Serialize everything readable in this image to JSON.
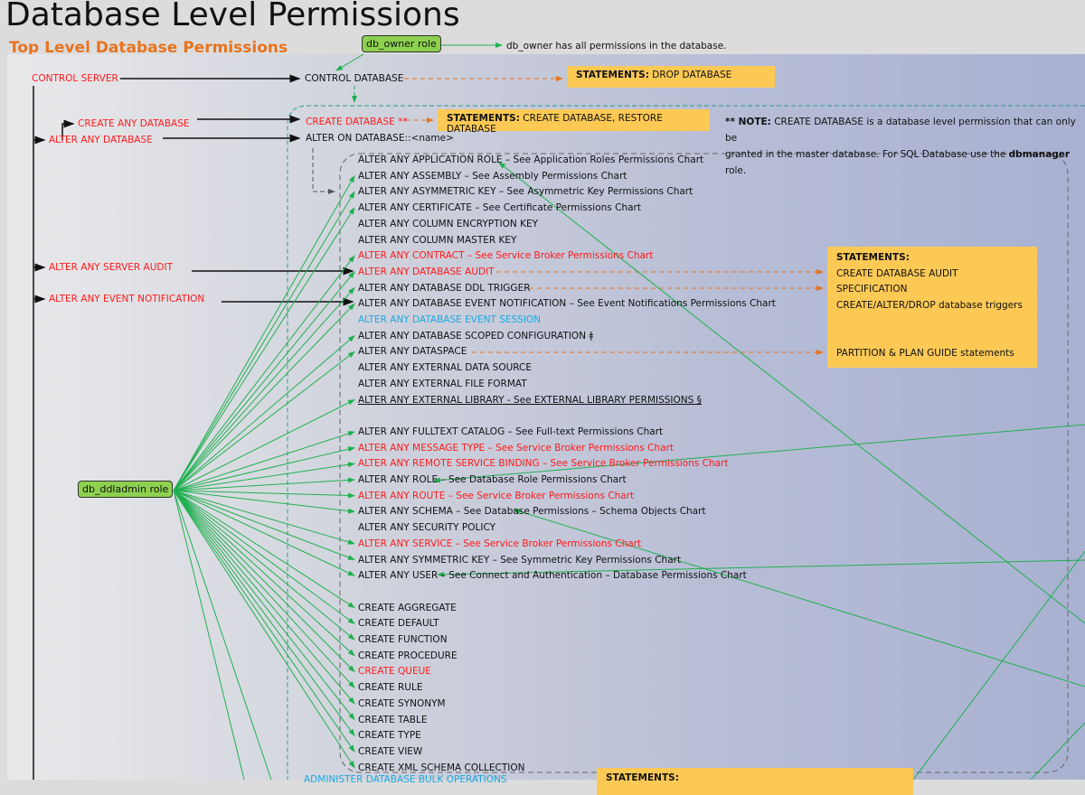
{
  "title": "Database Level Permissions",
  "subtitle": "Top Level Database Permissions",
  "roles": {
    "db_owner": "db_owner role",
    "db_ddladmin": "db_ddladmin role"
  },
  "db_owner_note": "db_owner has all permissions in the database.",
  "server_permissions": {
    "control_server": "CONTROL SERVER",
    "create_any_database": "CREATE ANY DATABASE",
    "alter_any_database": "ALTER ANY DATABASE",
    "alter_any_server_audit": "ALTER ANY SERVER AUDIT",
    "alter_any_event_notification": "ALTER ANY EVENT NOTIFICATION"
  },
  "database_permissions": {
    "control_database": "CONTROL DATABASE",
    "create_database": "CREATE DATABASE **",
    "alter_on_database": "ALTER ON DATABASE::<name>",
    "administer_bulk": "ADMINISTER DATABASE BULK OPERATIONS"
  },
  "statements": {
    "label": "STATEMENTS:",
    "drop": "DROP DATABASE",
    "create": "CREATE DATABASE, RESTORE DATABASE",
    "audit": "CREATE DATABASE AUDIT SPECIFICATION",
    "triggers": "CREATE/ALTER/DROP database triggers",
    "partition": "PARTITION & PLAN GUIDE statements"
  },
  "note": {
    "prefix": "** NOTE:",
    "text1": " CREATE DATABASE is a database level permission that can only be",
    "text2": "granted in the master database. For SQL Database use the ",
    "bold": "dbmanager",
    "text3": " role."
  },
  "permission_list": [
    {
      "label": "ALTER ANY APPLICATION ROLE – See Application Roles Permissions Chart",
      "color": "black"
    },
    {
      "label": "ALTER ANY ASSEMBLY – See Assembly Permissions Chart",
      "color": "black"
    },
    {
      "label": "ALTER ANY ASYMMETRIC KEY – See Asymmetric Key Permissions Chart",
      "color": "black"
    },
    {
      "label": "ALTER ANY CERTIFICATE – See Certificate Permissions Chart",
      "color": "black"
    },
    {
      "label": "ALTER ANY COLUMN ENCRYPTION KEY",
      "color": "black"
    },
    {
      "label": "ALTER ANY COLUMN MASTER KEY",
      "color": "black"
    },
    {
      "label": "ALTER ANY CONTRACT – See Service Broker Permissions Chart",
      "color": "red"
    },
    {
      "label": "ALTER ANY DATABASE AUDIT",
      "color": "red"
    },
    {
      "label": "ALTER ANY DATABASE DDL TRIGGER",
      "color": "black"
    },
    {
      "label": "ALTER ANY DATABASE EVENT NOTIFICATION – See Event Notifications Permissions Chart",
      "color": "black"
    },
    {
      "label": "ALTER ANY DATABASE EVENT SESSION",
      "color": "blue"
    },
    {
      "label": "ALTER ANY DATABASE SCOPED CONFIGURATION ǂ",
      "color": "black"
    },
    {
      "label": "ALTER ANY DATASPACE",
      "color": "black"
    },
    {
      "label": "ALTER ANY EXTERNAL DATA SOURCE",
      "color": "black"
    },
    {
      "label": "ALTER ANY EXTERNAL FILE FORMAT",
      "color": "black"
    },
    {
      "label": "ALTER ANY EXTERNAL LIBRARY - See EXTERNAL LIBRARY PERMISSIONS §",
      "color": "black",
      "underline": true
    },
    {
      "label": "ALTER ANY FULLTEXT CATALOG – See Full-text Permissions Chart",
      "color": "black"
    },
    {
      "label": "ALTER ANY MESSAGE TYPE – See Service Broker Permissions Chart",
      "color": "red"
    },
    {
      "label": "ALTER ANY REMOTE SERVICE BINDING – See Service Broker Permissions Chart",
      "color": "red"
    },
    {
      "label": "ALTER ANY ROLE – See Database Role Permissions Chart",
      "color": "black"
    },
    {
      "label": "ALTER ANY ROUTE – See Service Broker Permissions Chart",
      "color": "red"
    },
    {
      "label": "ALTER ANY SCHEMA – See Database Permissions – Schema Objects Chart",
      "color": "black"
    },
    {
      "label": "ALTER ANY SECURITY POLICY",
      "color": "black"
    },
    {
      "label": "ALTER ANY SERVICE – See Service Broker Permissions Chart",
      "color": "red"
    },
    {
      "label": "ALTER ANY SYMMETRIC KEY – See Symmetric Key Permissions Chart",
      "color": "black"
    },
    {
      "label": "ALTER ANY USER – See Connect and Authentication – Database Permissions Chart",
      "color": "black"
    },
    {
      "label": "CREATE AGGREGATE",
      "color": "black"
    },
    {
      "label": "CREATE DEFAULT",
      "color": "black"
    },
    {
      "label": "CREATE FUNCTION",
      "color": "black"
    },
    {
      "label": "CREATE PROCEDURE",
      "color": "black"
    },
    {
      "label": "CREATE QUEUE",
      "color": "red"
    },
    {
      "label": "CREATE RULE",
      "color": "black"
    },
    {
      "label": "CREATE SYNONYM",
      "color": "black"
    },
    {
      "label": "CREATE TABLE",
      "color": "black"
    },
    {
      "label": "CREATE TYPE",
      "color": "black"
    },
    {
      "label": "CREATE VIEW",
      "color": "black"
    },
    {
      "label": "CREATE XML SCHEMA COLLECTION",
      "color": "black"
    }
  ],
  "colors": {
    "red": "#ff1a1a",
    "blue": "#1fa8e0",
    "green_arrow": "#1fb04f",
    "orange_dashed": "#e8731e",
    "statement_box": "#fdc955",
    "role_box": "#8dd14f"
  }
}
